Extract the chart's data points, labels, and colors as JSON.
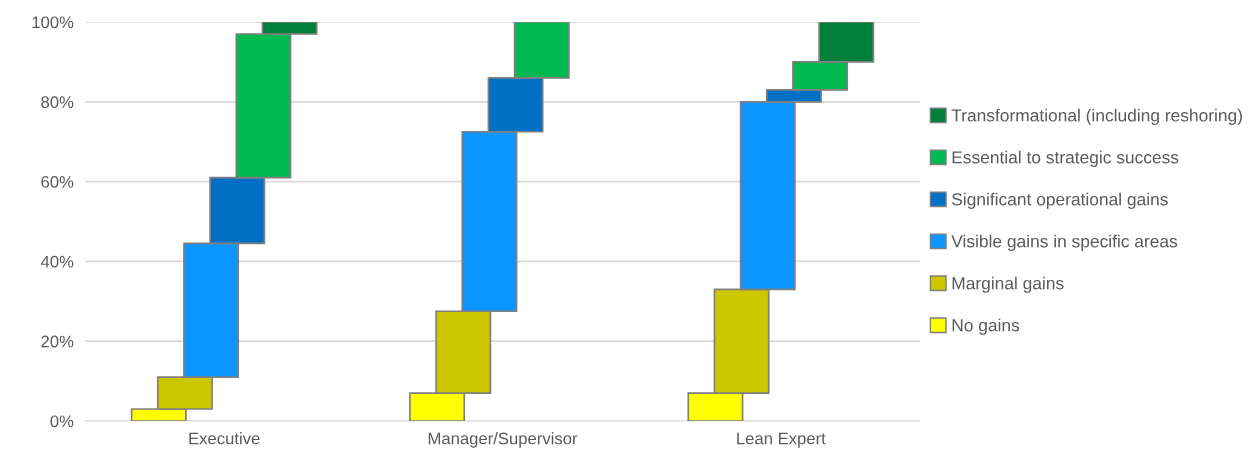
{
  "chart_data": {
    "type": "bar",
    "categories": [
      "Executive",
      "Manager/Supervisor",
      "Lean Expert"
    ],
    "series": [
      {
        "name": "No gains",
        "color": "#ffff00",
        "values": [
          3,
          7,
          7
        ],
        "base": [
          0,
          0,
          0
        ]
      },
      {
        "name": "Marginal gains",
        "color": "#cdc700",
        "values": [
          8,
          20.5,
          26
        ],
        "base": [
          3,
          7,
          7
        ]
      },
      {
        "name": "Visible gains in specific areas",
        "color": "#0b95ff",
        "values": [
          33.5,
          45,
          47
        ],
        "base": [
          11,
          27.5,
          33
        ]
      },
      {
        "name": "Significant operational gains",
        "color": "#0070c6",
        "values": [
          16.5,
          13.5,
          3
        ],
        "base": [
          44.5,
          72.5,
          80
        ]
      },
      {
        "name": "Essential to strategic success",
        "color": "#00b950",
        "values": [
          36,
          14,
          7
        ],
        "base": [
          61,
          86,
          83
        ]
      },
      {
        "name": "Transformational (including reshoring)",
        "color": "#00803a",
        "values": [
          3,
          null,
          10
        ],
        "base": [
          97,
          null,
          90
        ]
      }
    ],
    "ylim": [
      0,
      100
    ],
    "yticks": [
      {
        "value": 0,
        "label": "0%"
      },
      {
        "value": 20,
        "label": "20%"
      },
      {
        "value": 40,
        "label": "40%"
      },
      {
        "value": 60,
        "label": "60%"
      },
      {
        "value": 80,
        "label": "80%"
      },
      {
        "value": 100,
        "label": "100%"
      }
    ],
    "grid": "y",
    "legend": "right"
  }
}
